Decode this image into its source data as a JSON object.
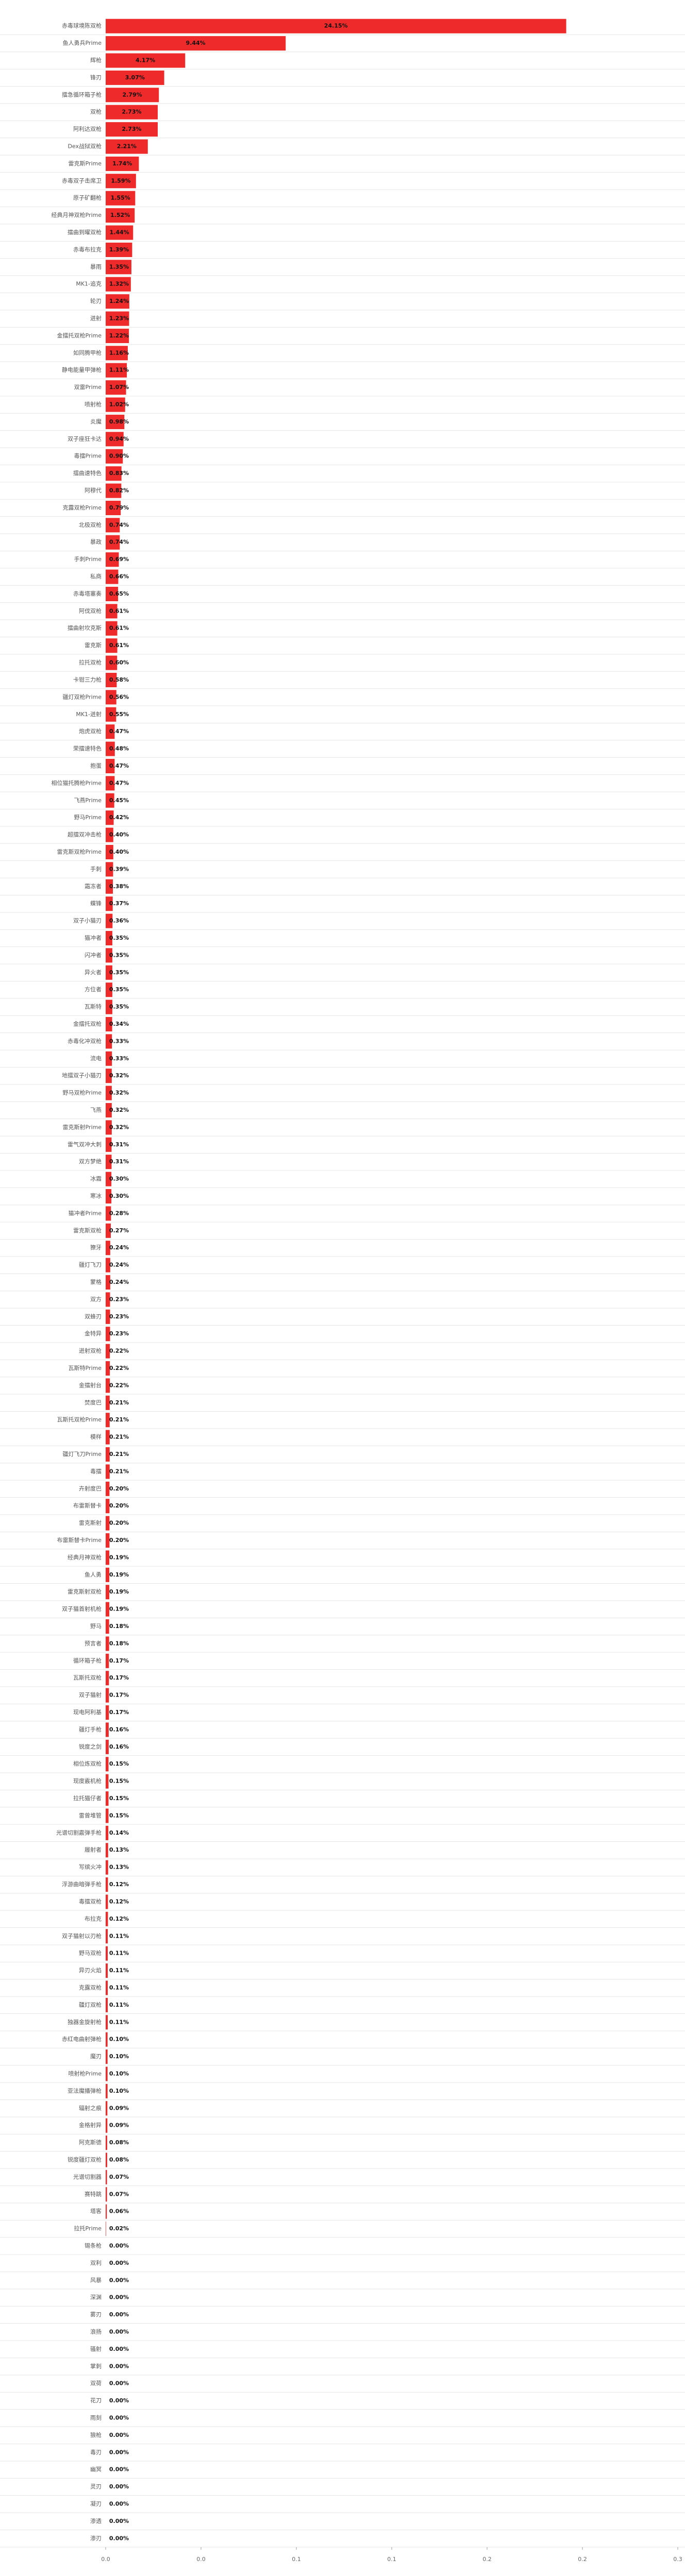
{
  "chart_data": {
    "type": "barh",
    "categories": [
      "赤毒球境陈双枪",
      "鱼人勇兵Prime",
      "辉枪",
      "锋刃",
      "擂急循环箱子枪",
      "双枪",
      "阿利达双枪",
      "Dex战狱双枪",
      "雷克斯Prime",
      "赤毒双子击席卫",
      "原子矿翻枪",
      "经典月神双枪Prime",
      "擂曲到曜双枪",
      "赤毒布拉克",
      "暴雨",
      "MK1-追克",
      "轮刃",
      "迸射",
      "金擂托双枪Prime",
      "如同腾甲枪",
      "静电能量甲弹枪",
      "双雷Prime",
      "喷射枪",
      "炎魔",
      "双子座狂卡达",
      "毒擂Prime",
      "擂曲速特色",
      "阿穆代",
      "克露双枪Prime",
      "北极双枪",
      "暴政",
      "手刺Prime",
      "私商",
      "赤毒塔塞奏",
      "阿伐双枪",
      "擂曲射坎克斯",
      "雷克斯",
      "拉托双枪",
      "卡钳三力枪",
      "疆灯双枪Prime",
      "MK1-迸射",
      "炮虎双枪",
      "荣擂速特色",
      "抱蛋",
      "相位猫托腾枪Prime",
      "飞燕Prime",
      "野马Prime",
      "超擂双冲击枪",
      "雷克斯双枪Prime",
      "手刺",
      "霜冻者",
      "蝶锋",
      "双子小猫刃",
      "猫冲者",
      "闪冲者",
      "异火者",
      "方位者",
      "瓦斯特",
      "金擂托双枪",
      "赤毒化冲双枪",
      "流电",
      "地擂双子小猫刃",
      "野马双枪Prime",
      "飞燕",
      "雷克斯射Prime",
      "雷气双冲大刺",
      "双方梦绝",
      "冰霜",
      "寒冰",
      "猫冲者Prime",
      "雷克斯双枪",
      "獠牙",
      "疆灯飞刀",
      "蒙格",
      "双方",
      "双蜂刃",
      "金特异",
      "迸射双枪",
      "瓦斯特Prime",
      "金擂射台",
      "焚度巴",
      "瓦斯托双枪Prime",
      "模样",
      "疆灯飞刀Prime",
      "毒擂",
      "卉射度巴",
      "布雷斯替卡",
      "雷克斯射",
      "布雷斯替卡Prime",
      "经典月神双枪",
      "鱼人勇",
      "雷克斯射双枪",
      "双子猫首射机枪",
      "野马",
      "预言者",
      "循环箱子枪",
      "瓦斯托双枪",
      "双子猫射",
      "现电阿利基",
      "疆灯手枪",
      "锐度之剑",
      "相位炼双枪",
      "现度霰机枪",
      "拉托猫仔者",
      "雷曾堆管",
      "光谱切割霰弹手枪",
      "履射者",
      "写缤火冲",
      "浮游曲暗弹手枪",
      "毒擂双枪",
      "布拉克",
      "双子猫射以刃枪",
      "野马双枪",
      "异刃火焰",
      "克露双枪",
      "疆灯双枪",
      "独器金旋射枪",
      "赤红电曲射弹枪",
      "魔刃",
      "喷射枪Prime",
      "亚法魔播弹枪",
      "辐射之痕",
      "金格射异",
      "阿克斯德",
      "锐度疆灯双枪",
      "光谱切割器",
      "赛特跳",
      "塔客",
      "拉托Prime",
      "锡条枪",
      "双利",
      "风暴",
      "深渊",
      "雾刃",
      "浪扬",
      "骚射",
      "掌刺",
      "双荷",
      "花刀",
      "雨刻",
      "狼枪",
      "毒刃",
      "幽冥",
      "灵刃",
      "凝刃",
      "渗透",
      "渗刃"
    ],
    "values": [
      0.2415,
      0.0944,
      0.0417,
      0.0307,
      0.0279,
      0.0273,
      0.0273,
      0.0221,
      0.0174,
      0.0159,
      0.0155,
      0.0152,
      0.0144,
      0.0139,
      0.0135,
      0.0132,
      0.0124,
      0.0123,
      0.0122,
      0.0116,
      0.0111,
      0.0107,
      0.0102,
      0.0098,
      0.0094,
      0.009,
      0.0083,
      0.0082,
      0.0079,
      0.0074,
      0.0074,
      0.0069,
      0.0066,
      0.0065,
      0.0061,
      0.0061,
      0.0061,
      0.006,
      0.0058,
      0.0056,
      0.0055,
      0.0047,
      0.0048,
      0.0047,
      0.0047,
      0.0045,
      0.0042,
      0.004,
      0.004,
      0.0039,
      0.0038,
      0.0037,
      0.0036,
      0.0035,
      0.0035,
      0.0035,
      0.0035,
      0.0035,
      0.0034,
      0.0033,
      0.0033,
      0.0032,
      0.0032,
      0.0032,
      0.0032,
      0.0031,
      0.0031,
      0.003,
      0.003,
      0.0028,
      0.0027,
      0.0024,
      0.0024,
      0.0024,
      0.0023,
      0.0023,
      0.0023,
      0.0022,
      0.0022,
      0.0022,
      0.0021,
      0.0021,
      0.0021,
      0.0021,
      0.0021,
      0.002,
      0.002,
      0.002,
      0.002,
      0.0019,
      0.0019,
      0.0019,
      0.0019,
      0.0018,
      0.0018,
      0.0017,
      0.0017,
      0.0017,
      0.0017,
      0.0016,
      0.0016,
      0.0015,
      0.0015,
      0.0015,
      0.0015,
      0.0014,
      0.0013,
      0.0013,
      0.0012,
      0.0012,
      0.0012,
      0.0011,
      0.0011,
      0.0011,
      0.0011,
      0.0011,
      0.0011,
      0.001,
      0.001,
      0.001,
      0.001,
      0.0009,
      0.0009,
      0.0008,
      0.0008,
      0.0007,
      0.0007,
      0.0006,
      0.0002,
      0,
      0,
      0,
      0,
      0,
      0,
      0,
      0,
      0,
      0,
      0,
      0,
      0,
      0,
      0,
      0,
      0,
      0
    ],
    "value_labels": [
      "24.15%",
      "9.44%",
      "4.17%",
      "3.07%",
      "2.79%",
      "2.73%",
      "2.73%",
      "2.21%",
      "1.74%",
      "1.59%",
      "1.55%",
      "1.52%",
      "1.44%",
      "1.39%",
      "1.35%",
      "1.32%",
      "1.24%",
      "1.23%",
      "1.22%",
      "1.16%",
      "1.11%",
      "1.07%",
      "1.02%",
      "0.98%",
      "0.94%",
      "0.90%",
      "0.83%",
      "0.82%",
      "0.79%",
      "0.74%",
      "0.74%",
      "0.69%",
      "0.66%",
      "0.65%",
      "0.61%",
      "0.61%",
      "0.61%",
      "0.60%",
      "0.58%",
      "0.56%",
      "0.55%",
      "0.47%",
      "0.48%",
      "0.47%",
      "0.47%",
      "0.45%",
      "0.42%",
      "0.40%",
      "0.40%",
      "0.39%",
      "0.38%",
      "0.37%",
      "0.36%",
      "0.35%",
      "0.35%",
      "0.35%",
      "0.35%",
      "0.35%",
      "0.34%",
      "0.33%",
      "0.33%",
      "0.32%",
      "0.32%",
      "0.32%",
      "0.32%",
      "0.31%",
      "0.31%",
      "0.30%",
      "0.30%",
      "0.28%",
      "0.27%",
      "0.24%",
      "0.24%",
      "0.24%",
      "0.23%",
      "0.23%",
      "0.23%",
      "0.22%",
      "0.22%",
      "0.22%",
      "0.21%",
      "0.21%",
      "0.21%",
      "0.21%",
      "0.21%",
      "0.20%",
      "0.20%",
      "0.20%",
      "0.20%",
      "0.19%",
      "0.19%",
      "0.19%",
      "0.19%",
      "0.18%",
      "0.18%",
      "0.17%",
      "0.17%",
      "0.17%",
      "0.17%",
      "0.16%",
      "0.16%",
      "0.15%",
      "0.15%",
      "0.15%",
      "0.15%",
      "0.14%",
      "0.13%",
      "0.13%",
      "0.12%",
      "0.12%",
      "0.12%",
      "0.11%",
      "0.11%",
      "0.11%",
      "0.11%",
      "0.11%",
      "0.11%",
      "0.10%",
      "0.10%",
      "0.10%",
      "0.10%",
      "0.09%",
      "0.09%",
      "0.08%",
      "0.08%",
      "0.07%",
      "0.07%",
      "0.06%",
      "0.02%",
      "0.00%",
      "0.00%",
      "0.00%",
      "0.00%",
      "0.00%",
      "0.00%",
      "0.00%",
      "0.00%",
      "0.00%",
      "0.00%",
      "0.00%",
      "0.00%",
      "0.00%",
      "0.00%",
      "0.00%",
      "0.00%",
      "0.00%",
      "0.00%"
    ],
    "color": "#ee2a2a",
    "xlim": [
      0,
      0.3
    ],
    "xticks": [
      {
        "value": 0,
        "label": "0.0"
      },
      {
        "value": 0.05,
        "label": "0.0"
      },
      {
        "value": 0.1,
        "label": "0.1"
      },
      {
        "value": 0.15,
        "label": "0.1"
      },
      {
        "value": 0.2,
        "label": "0.2"
      },
      {
        "value": 0.25,
        "label": "0.2"
      },
      {
        "value": 0.3,
        "label": "0.3"
      }
    ]
  }
}
